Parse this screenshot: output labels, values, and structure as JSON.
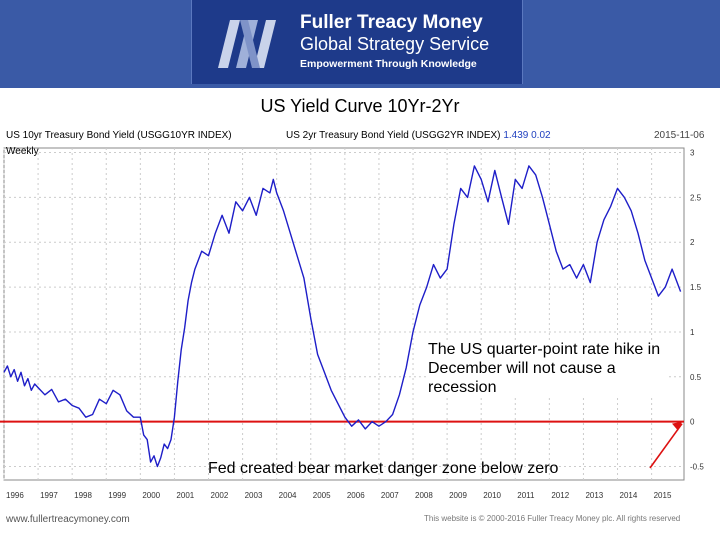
{
  "header": {
    "brand_name": "Fuller Treacy Money",
    "brand_sub": "Global Strategy Service",
    "tagline": "Empowerment Through Knowledge",
    "colors": {
      "band": "#3a5aa6",
      "logo_bg": "#1e3a8a"
    }
  },
  "slide_title": "US Yield Curve 10Yr-2Yr",
  "chart_data": {
    "type": "line",
    "source_label_10yr": "US 10yr Treasury Bond Yield (USGG10YR INDEX)",
    "source_label_2yr": "US 2yr Treasury Bond Yield (USGG2YR INDEX)",
    "last_value": "1.439",
    "last_change": "0.02",
    "date_label": "2015-11-06",
    "period": "Weekly",
    "x_ticks": [
      "1996",
      "1997",
      "1998",
      "1999",
      "2000",
      "2001",
      "2002",
      "2003",
      "2004",
      "2005",
      "2006",
      "2007",
      "2008",
      "2009",
      "2010",
      "2011",
      "2012",
      "2013",
      "2014",
      "2015"
    ],
    "y_ticks": [
      {
        "value": 3,
        "label": "3"
      },
      {
        "value": 2.5,
        "label": "2.5"
      },
      {
        "value": 2,
        "label": "2"
      },
      {
        "value": 1.5,
        "label": "1.5"
      },
      {
        "value": 1,
        "label": "1"
      },
      {
        "value": 0.5,
        "label": "0.5"
      },
      {
        "value": 0,
        "label": "0"
      },
      {
        "value": -0.5,
        "label": "-0.5"
      }
    ],
    "ylim": [
      -0.65,
      3.05
    ],
    "xlim": [
      1996.0,
      2015.95
    ],
    "grid": true,
    "line_color": "#1e1ec8",
    "zero_line_color": "#dd1111",
    "series": [
      {
        "x": [
          1996.0,
          1996.1,
          1996.2,
          1996.3,
          1996.4,
          1996.5,
          1996.6,
          1996.7,
          1996.8,
          1996.9,
          1997.0,
          1997.2,
          1997.4,
          1997.6,
          1997.8,
          1998.0,
          1998.2,
          1998.4,
          1998.6,
          1998.8,
          1999.0,
          1999.2,
          1999.4,
          1999.6,
          1999.8,
          2000.0,
          2000.1,
          2000.2,
          2000.3,
          2000.4,
          2000.5,
          2000.6,
          2000.7,
          2000.8,
          2000.9,
          2001.0,
          2001.1,
          2001.2,
          2001.3,
          2001.4,
          2001.5,
          2001.6,
          2001.8,
          2002.0,
          2002.2,
          2002.4,
          2002.6,
          2002.8,
          2003.0,
          2003.2,
          2003.4,
          2003.6,
          2003.8,
          2003.9,
          2004.0,
          2004.2,
          2004.4,
          2004.6,
          2004.8,
          2005.0,
          2005.2,
          2005.4,
          2005.6,
          2005.8,
          2006.0,
          2006.2,
          2006.4,
          2006.6,
          2006.8,
          2007.0,
          2007.2,
          2007.4,
          2007.6,
          2007.8,
          2008.0,
          2008.2,
          2008.4,
          2008.6,
          2008.8,
          2009.0,
          2009.2,
          2009.4,
          2009.6,
          2009.8,
          2010.0,
          2010.2,
          2010.4,
          2010.6,
          2010.8,
          2011.0,
          2011.2,
          2011.4,
          2011.6,
          2011.8,
          2012.0,
          2012.2,
          2012.4,
          2012.6,
          2012.8,
          2013.0,
          2013.2,
          2013.4,
          2013.6,
          2013.8,
          2014.0,
          2014.2,
          2014.4,
          2014.6,
          2014.8,
          2015.0,
          2015.2,
          2015.4,
          2015.6,
          2015.85
        ],
        "y": [
          0.55,
          0.62,
          0.5,
          0.58,
          0.45,
          0.55,
          0.4,
          0.48,
          0.35,
          0.42,
          0.38,
          0.3,
          0.36,
          0.22,
          0.25,
          0.18,
          0.15,
          0.05,
          0.08,
          0.25,
          0.2,
          0.35,
          0.3,
          0.12,
          0.05,
          0.05,
          -0.15,
          -0.2,
          -0.45,
          -0.38,
          -0.5,
          -0.4,
          -0.25,
          -0.3,
          -0.2,
          0.05,
          0.45,
          0.8,
          1.05,
          1.35,
          1.55,
          1.7,
          1.9,
          1.85,
          2.1,
          2.3,
          2.1,
          2.45,
          2.35,
          2.5,
          2.3,
          2.6,
          2.55,
          2.7,
          2.55,
          2.35,
          2.1,
          1.85,
          1.6,
          1.15,
          0.75,
          0.55,
          0.35,
          0.2,
          0.05,
          -0.05,
          0.02,
          -0.08,
          0.0,
          -0.05,
          0.0,
          0.08,
          0.3,
          0.6,
          1.0,
          1.3,
          1.5,
          1.75,
          1.6,
          1.7,
          2.2,
          2.6,
          2.5,
          2.85,
          2.7,
          2.45,
          2.8,
          2.5,
          2.2,
          2.7,
          2.6,
          2.85,
          2.75,
          2.5,
          2.2,
          1.9,
          1.7,
          1.75,
          1.6,
          1.75,
          1.55,
          2.0,
          2.25,
          2.4,
          2.6,
          2.5,
          2.35,
          2.1,
          1.8,
          1.6,
          1.4,
          1.5,
          1.7,
          1.45
        ]
      }
    ],
    "annotations": [
      "The US quarter-point rate hike in December will not cause a recession",
      "Fed created bear market danger zone below zero"
    ]
  },
  "footer": {
    "website": "www.fullertreacymoney.com",
    "copyright": "This website is © 2000-2016 Fuller Treacy Money plc. All rights reserved"
  }
}
